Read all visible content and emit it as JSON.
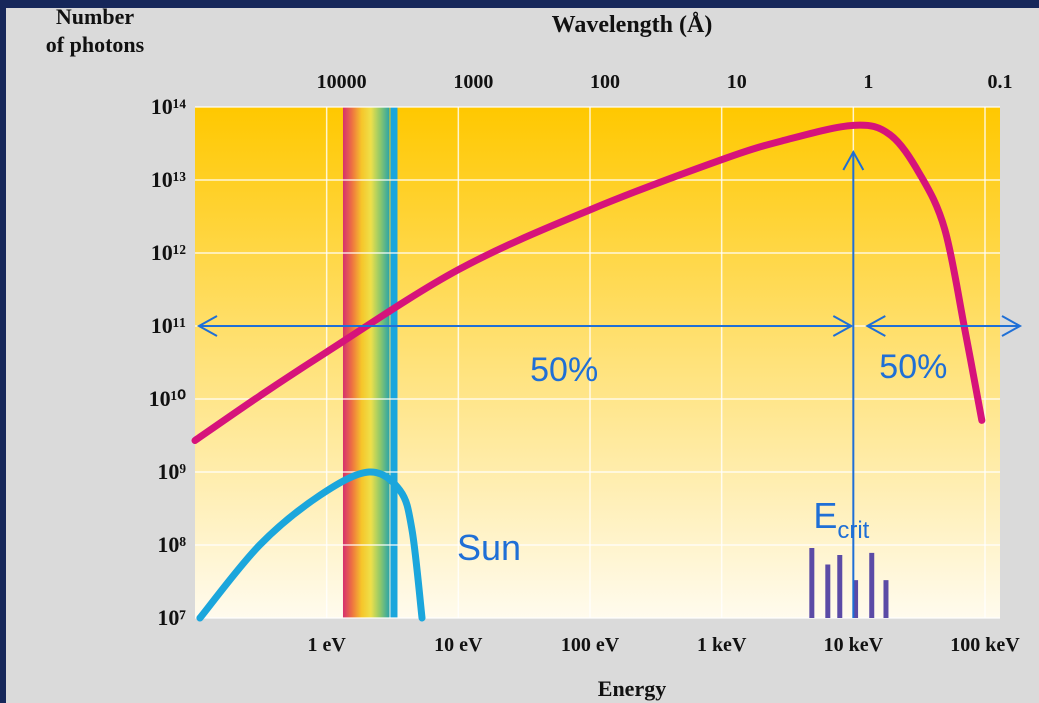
{
  "chart_data": {
    "type": "line",
    "x2label": "Wavelength (Å)",
    "ylabel": [
      "Number",
      "of photons"
    ],
    "xlabel": "Energy",
    "xscale": "log",
    "yscale": "log",
    "xlim": [
      0.1,
      130000
    ],
    "ylim": [
      10000000.0,
      100000000000000.0
    ],
    "xticks": [
      {
        "value": 1,
        "label": "1 eV"
      },
      {
        "value": 10,
        "label": "10 eV"
      },
      {
        "value": 100,
        "label": "100 eV"
      },
      {
        "value": 1000,
        "label": "1 keV"
      },
      {
        "value": 10000,
        "label": "10 keV"
      },
      {
        "value": 100000,
        "label": "100 keV"
      }
    ],
    "x2lim": [
      100000,
      0.077
    ],
    "x2ticks": [
      10000,
      1000,
      100,
      10,
      1,
      0.1
    ],
    "yticks": [
      {
        "value": 10000000.0,
        "label": "10⁷"
      },
      {
        "value": 100000000.0,
        "label": "10⁸"
      },
      {
        "value": 1000000000.0,
        "label": "10⁹"
      },
      {
        "value": 10000000000.0,
        "label": "10¹⁰"
      },
      {
        "value": 100000000000.0,
        "label": "10¹¹"
      },
      {
        "value": 1000000000000.0,
        "label": "10¹²"
      },
      {
        "value": 10000000000000.0,
        "label": "10¹³"
      },
      {
        "value": 100000000000000.0,
        "label": "10¹⁴"
      }
    ],
    "grid": true,
    "series": [
      {
        "color": "#d6137b",
        "x": [
          0.1,
          0.31,
          1,
          10,
          100,
          1000,
          3000,
          10000,
          18900,
          32000,
          49500,
          70300,
          94600
        ],
        "values": [
          2700000000.0,
          11000000000.0,
          44000000000.0,
          590000000000.0,
          3900000000000.0,
          19000000000000.0,
          35000000000000.0,
          56000000000000.0,
          42000000000000.0,
          12000000000000.0,
          2100000000000.0,
          89000000000.0,
          5100000000.0
        ]
      },
      {
        "name": "Sun",
        "color": "#1ba6dc",
        "x": [
          0.109,
          0.31,
          0.89,
          2.1,
          3.6,
          4.45,
          5.3
        ],
        "values": [
          10000000.0,
          100000000.0,
          480000000.0,
          1000000000.0,
          560000000.0,
          160000000.0,
          10000000.0
        ]
      },
      {
        "type": "spike",
        "color": "#5b4ba6",
        "x": [
          4840,
          6400,
          7890,
          10400,
          13800,
          17700
        ],
        "values": [
          91000000.0,
          54000000.0,
          73000000.0,
          33000000.0,
          78000000.0,
          33000000.0
        ]
      }
    ],
    "bands": [
      {
        "xlim": [
          1.33,
          3.0
        ],
        "colors": [
          "#d6306f",
          "#ee7440",
          "#f6c52a",
          "#eee04a",
          "#8fc86a",
          "#2aa3a8"
        ]
      },
      {
        "xlim": [
          3.05,
          3.45
        ],
        "color": "#1ba6dc"
      }
    ],
    "critical_energy": 10000,
    "arrow_level": 100000000000.0,
    "annotations": [
      "50%",
      "50%"
    ],
    "ecrit_label": {
      "main": "E",
      "sub": "crit"
    },
    "annotation_color": "#1f6fd6"
  }
}
